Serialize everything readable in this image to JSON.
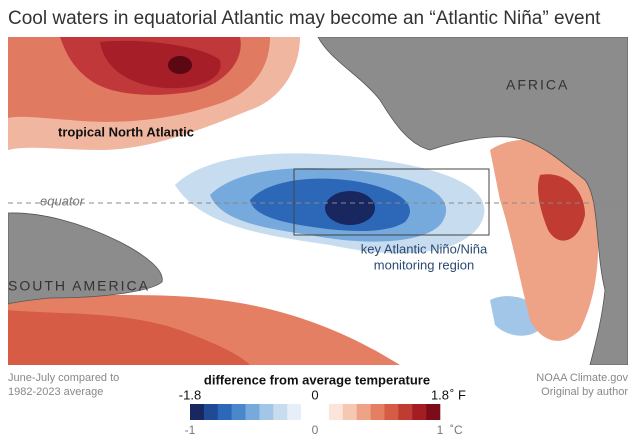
{
  "title": "Cool waters in equatorial Atlantic may become an “Atlantic Niña” event",
  "map_labels": {
    "africa": "AFRICA",
    "south_america": "SOUTH AMERICA",
    "north_atlantic": "tropical North Atlantic",
    "equator": "equator",
    "region": [
      "key Atlantic Niño/Niña",
      "monitoring region"
    ]
  },
  "footnote_left": [
    "June-July compared to",
    "1982-2023 average"
  ],
  "footnote_right": [
    "NOAA Climate.gov",
    "Original by author"
  ],
  "legend": {
    "title": "difference from average temperature",
    "fahrenheit": {
      "ticks": [
        "-1.8",
        "0",
        "1.8"
      ],
      "unit": "˚ F"
    },
    "celsius": {
      "ticks": [
        "-1",
        "0",
        "1"
      ],
      "unit": "˚C"
    },
    "colors": [
      "#18275f",
      "#1f4a94",
      "#2d68b8",
      "#4a88cc",
      "#76a9dc",
      "#a2c6e8",
      "#c8dcf0",
      "#e6eff8",
      "#ffffff",
      "#ffffff",
      "#fbe4d9",
      "#f6c7b3",
      "#efa386",
      "#e57f64",
      "#d65c46",
      "#c03b31",
      "#a31d23",
      "#7c0d18"
    ]
  }
}
